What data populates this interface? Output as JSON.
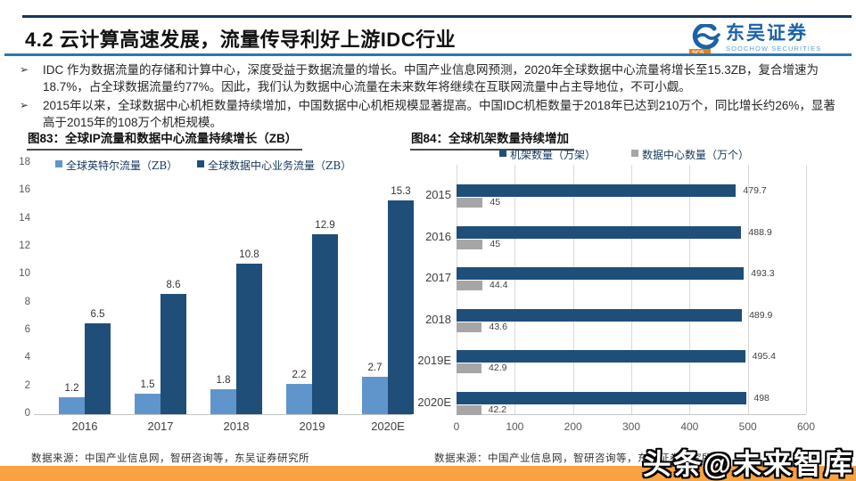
{
  "header": {
    "title": "4.2 云计算高速发展，流量传导利好上游IDC行业",
    "logo": {
      "cn": "东吴证券",
      "en": "SOOCHOW SECURITIES",
      "abbr": "SCS"
    }
  },
  "bullets": [
    {
      "marker": "➢",
      "text": "IDC 作为数据流量的存储和计算中心，深度受益于数据流量的增长。中国产业信息网预测，2020年全球数据中心流量将增长至15.3ZB，复合增速为18.7%，占全球数据流量约77%。因此，我们认为数据中心流量在未来数年将继续在互联网流量中占主导地位，不可小觑。"
    },
    {
      "marker": "➢",
      "text": "2015年以来，全球数据中心机柜数量持续增加，中国数据中心机柜规模显著提高。中国IDC机柜数量于2018年已达到210万个，同比增长约26%，显著高于2015年的108万个机柜规模。"
    }
  ],
  "chart_data": [
    {
      "type": "bar",
      "title": "图83：全球IP流量和数据中心流量持续增长（ZB）",
      "categories": [
        "2016",
        "2017",
        "2018",
        "2019",
        "2020E"
      ],
      "series": [
        {
          "name": "全球英特尔流量（ZB）",
          "color": "#6095CB",
          "values": [
            1.2,
            1.5,
            1.8,
            2.2,
            2.7
          ]
        },
        {
          "name": "全球数据中心业务流量（ZB）",
          "color": "#1F4E79",
          "values": [
            6.5,
            8.6,
            10.8,
            12.9,
            15.3
          ]
        }
      ],
      "ylim": [
        0,
        18
      ],
      "ytick_step": 2,
      "grid": false,
      "legend_position": "top",
      "source": "数据来源：中国产业信息网，智研咨询等，东吴证券研究所"
    },
    {
      "type": "horizontal-bar",
      "title": "图84：全球机架数量持续增加",
      "categories": [
        "2015",
        "2016",
        "2017",
        "2018",
        "2019E",
        "2020E"
      ],
      "series": [
        {
          "name": "机架数量（万架）",
          "color": "#1F4E79",
          "values": [
            479.7,
            488.9,
            493.3,
            489.9,
            495.4,
            498
          ]
        },
        {
          "name": "数据中心数量（万个）",
          "color": "#A6A6A6",
          "values": [
            45,
            45,
            44.4,
            43.6,
            42.9,
            42.2
          ]
        }
      ],
      "xlim": [
        0,
        600
      ],
      "xtick_step": 100,
      "grid": true,
      "legend_position": "top",
      "source": "数据来源：中国产业信息网，智研咨询等，东吴证券研究所"
    }
  ],
  "watermark": {
    "text": "头条@未来智库"
  },
  "colors": {
    "top_line": "#16365C",
    "header_divider": "#2E75B6",
    "navy_bar": "#1F4E79",
    "light_blue_bar": "#6095CB",
    "gray_bar": "#A6A6A6",
    "footer_orange": "#F9A242",
    "axis_line": "#C6C6C6",
    "gridline": "#D9D9D9",
    "tick_text": "#595959"
  }
}
